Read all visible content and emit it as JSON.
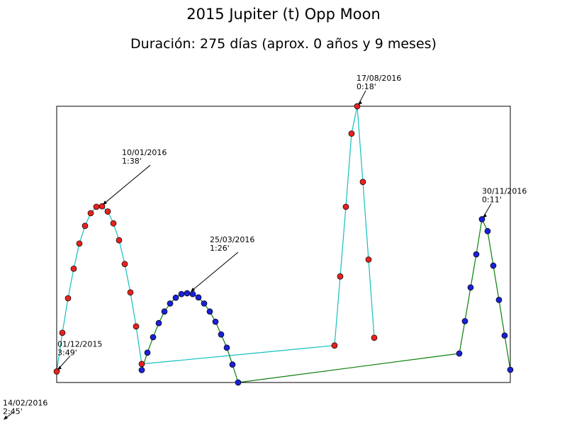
{
  "chart_data": {
    "type": "scatter",
    "title": "2015 Jupiter (t) Opp Moon",
    "subtitle": "Duración: 275 días (aprox. 0 años y 9 meses)",
    "xlabel": "",
    "ylabel": "",
    "xlim": [
      0,
      80
    ],
    "ylim": [
      0,
      100
    ],
    "grid": false,
    "ticks_visible": false,
    "colors": {
      "red_marker": "#e8221e",
      "blue_marker": "#1a21d6",
      "cyan_line": "#14bfbf",
      "green_line": "#0a7e0a",
      "frame": "#000000"
    },
    "series": [
      {
        "line_color": "#14bfbf",
        "marker_color": "#e8221e",
        "points": [
          [
            0,
            4
          ],
          [
            1,
            18
          ],
          [
            2,
            30.5
          ],
          [
            3,
            41.2
          ],
          [
            4,
            50.3
          ],
          [
            5,
            56.7
          ],
          [
            6,
            61.3
          ],
          [
            7,
            63.6
          ],
          [
            8,
            63.8
          ],
          [
            9,
            61.9
          ],
          [
            10,
            57.6
          ],
          [
            11,
            51.5
          ],
          [
            12,
            42.9
          ],
          [
            13,
            32.6
          ],
          [
            14,
            20.3
          ],
          [
            15,
            6.7
          ],
          [
            49,
            13.4
          ],
          [
            50,
            38.4
          ],
          [
            51,
            63.6
          ],
          [
            52,
            90.1
          ],
          [
            53,
            100
          ],
          [
            54,
            72.6
          ],
          [
            55,
            44.5
          ],
          [
            56,
            16.2
          ]
        ]
      },
      {
        "line_color": "#0a7e0a",
        "marker_color": "#1a21d6",
        "points": [
          [
            15,
            4.5
          ],
          [
            16,
            10.8
          ],
          [
            17,
            16.4
          ],
          [
            18,
            21.5
          ],
          [
            19,
            25.7
          ],
          [
            20,
            28.6
          ],
          [
            21,
            30.7
          ],
          [
            22,
            32
          ],
          [
            23,
            32.3
          ],
          [
            24,
            32
          ],
          [
            25,
            30.8
          ],
          [
            26,
            28.6
          ],
          [
            27,
            25.7
          ],
          [
            28,
            22
          ],
          [
            29,
            17.4
          ],
          [
            30,
            12.6
          ],
          [
            31,
            6.5
          ],
          [
            32,
            0
          ],
          [
            71,
            10.5
          ],
          [
            72,
            22.2
          ],
          [
            73,
            34.4
          ],
          [
            74,
            46.4
          ],
          [
            75,
            59.1
          ],
          [
            76,
            54.8
          ],
          [
            77,
            42.3
          ],
          [
            78,
            29.9
          ],
          [
            79,
            17
          ],
          [
            80,
            4.6
          ]
        ]
      }
    ],
    "annotations": [
      {
        "date": "01/12/2015",
        "value": "3:49'",
        "x": 0,
        "y": 4
      },
      {
        "date": "10/01/2016",
        "value": "1:38'",
        "x": 8,
        "y": 63.8
      },
      {
        "date": "14/02/2016",
        "value": "2:45'",
        "x": -9.5,
        "y": -14
      },
      {
        "date": "25/03/2016",
        "value": "1:26'",
        "x": 23.5,
        "y": 32.3
      },
      {
        "date": "17/08/2016",
        "value": "0:18'",
        "x": 53,
        "y": 100
      },
      {
        "date": "30/11/2016",
        "value": "0:11'",
        "x": 75,
        "y": 59.1
      }
    ]
  }
}
